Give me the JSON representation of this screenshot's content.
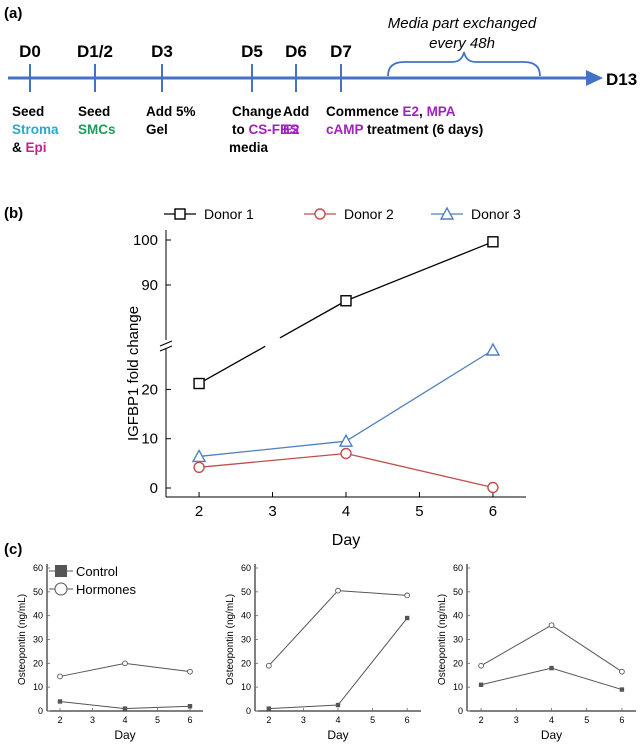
{
  "panels": {
    "a": "(a)",
    "b": "(b)",
    "c": "(c)"
  },
  "timeline": {
    "end_label": "D13",
    "note_line1": "Media part exchanged",
    "note_line2": "every 48h",
    "days": [
      {
        "id": "d0",
        "label": "D0",
        "lines": [
          [
            {
              "t": "Seed",
              "c": "black"
            }
          ],
          [
            {
              "t": "Stroma",
              "c": "cyan"
            }
          ],
          [
            {
              "t": "& ",
              "c": "black"
            },
            {
              "t": "Epi",
              "c": "magenta"
            }
          ]
        ]
      },
      {
        "id": "d12",
        "label": "D1/2",
        "lines": [
          [
            {
              "t": "Seed",
              "c": "black"
            }
          ],
          [
            {
              "t": "SMCs",
              "c": "green"
            }
          ]
        ]
      },
      {
        "id": "d3",
        "label": "D3",
        "lines": [
          [
            {
              "t": "Add 5%",
              "c": "black"
            }
          ],
          [
            {
              "t": "Gel",
              "c": "black"
            }
          ]
        ]
      },
      {
        "id": "d5",
        "label": "D5",
        "lines": [
          [
            {
              "t": "Change",
              "c": "black"
            }
          ],
          [
            {
              "t": "to ",
              "c": "black"
            },
            {
              "t": "CS-FBS",
              "c": "purple"
            }
          ],
          [
            {
              "t": "media",
              "c": "black"
            }
          ]
        ]
      },
      {
        "id": "d6",
        "label": "D6",
        "lines": [
          [
            {
              "t": "Add",
              "c": "black"
            }
          ],
          [
            {
              "t": "E2",
              "c": "purple"
            }
          ]
        ]
      },
      {
        "id": "d7",
        "label": "D7",
        "lines": [
          [
            {
              "t": "Commence ",
              "c": "black"
            },
            {
              "t": "E2",
              "c": "purple"
            },
            {
              "t": ", ",
              "c": "black"
            },
            {
              "t": "MPA",
              "c": "purple"
            }
          ],
          [
            {
              "t": "cAMP",
              "c": "purple"
            },
            {
              "t": " treatment (6 days)",
              "c": "black"
            }
          ]
        ]
      }
    ]
  },
  "colors": {
    "timeline": "#4472c4",
    "cyan": "#2ea8c8",
    "magenta": "#c0248a",
    "green": "#1f9a5a",
    "purple": "#a020c0",
    "black": "#000000",
    "donor1": "#000000",
    "donor2": "#c0504d",
    "donor3": "#4f81bd",
    "control": "#555555",
    "hormones": "#555555"
  },
  "chart_data": [
    {
      "type": "line",
      "id": "b",
      "xlabel": "Day",
      "ylabel": "IGFBP1 fold change",
      "x_ticks": [
        2,
        3,
        4,
        5,
        6
      ],
      "y_ticks_lower": [
        0,
        10,
        20
      ],
      "y_ticks_upper": [
        90,
        100
      ],
      "ylim_lower": [
        0,
        28
      ],
      "ylim_upper": [
        80,
        100
      ],
      "series": [
        {
          "name": "Donor 1",
          "marker": "square",
          "x": [
            2,
            4,
            6
          ],
          "values": [
            21.2,
            86.5,
            99.6
          ]
        },
        {
          "name": "Donor 2",
          "marker": "circle",
          "x": [
            2,
            4,
            6
          ],
          "values": [
            4.2,
            7.0,
            0.1
          ]
        },
        {
          "name": "Donor 3",
          "marker": "triangle",
          "x": [
            2,
            4,
            6
          ],
          "values": [
            6.4,
            9.5,
            28.0
          ]
        }
      ]
    },
    {
      "type": "line",
      "id": "c1",
      "xlabel": "Day",
      "ylabel": "Osteopontin (ng/mL)",
      "x_ticks": [
        2,
        3,
        4,
        5,
        6
      ],
      "y_ticks": [
        0,
        10,
        20,
        30,
        40,
        50,
        60
      ],
      "ylim": [
        0,
        60
      ],
      "legend": true,
      "series": [
        {
          "name": "Control",
          "marker": "square",
          "x": [
            2,
            4,
            6
          ],
          "values": [
            4,
            1,
            2
          ]
        },
        {
          "name": "Hormones",
          "marker": "circle",
          "x": [
            2,
            4,
            6
          ],
          "values": [
            14.5,
            20,
            16.5
          ]
        }
      ]
    },
    {
      "type": "line",
      "id": "c2",
      "xlabel": "Day",
      "ylabel": "Osteopontin (ng/mL)",
      "x_ticks": [
        2,
        3,
        4,
        5,
        6
      ],
      "y_ticks": [
        0,
        10,
        20,
        30,
        40,
        50,
        60
      ],
      "ylim": [
        0,
        60
      ],
      "legend": false,
      "series": [
        {
          "name": "Control",
          "marker": "square",
          "x": [
            2,
            4,
            6
          ],
          "values": [
            1,
            2.5,
            39
          ]
        },
        {
          "name": "Hormones",
          "marker": "circle",
          "x": [
            2,
            4,
            6
          ],
          "values": [
            19,
            50.5,
            48.5
          ]
        }
      ]
    },
    {
      "type": "line",
      "id": "c3",
      "xlabel": "Day",
      "ylabel": "Osteopontin (ng/mL)",
      "x_ticks": [
        2,
        3,
        4,
        5,
        6
      ],
      "y_ticks": [
        0,
        10,
        20,
        30,
        40,
        50,
        60
      ],
      "ylim": [
        0,
        60
      ],
      "legend": false,
      "series": [
        {
          "name": "Control",
          "marker": "square",
          "x": [
            2,
            4,
            6
          ],
          "values": [
            11,
            18,
            9
          ]
        },
        {
          "name": "Hormones",
          "marker": "circle",
          "x": [
            2,
            4,
            6
          ],
          "values": [
            19,
            36,
            16.5
          ]
        }
      ]
    }
  ]
}
